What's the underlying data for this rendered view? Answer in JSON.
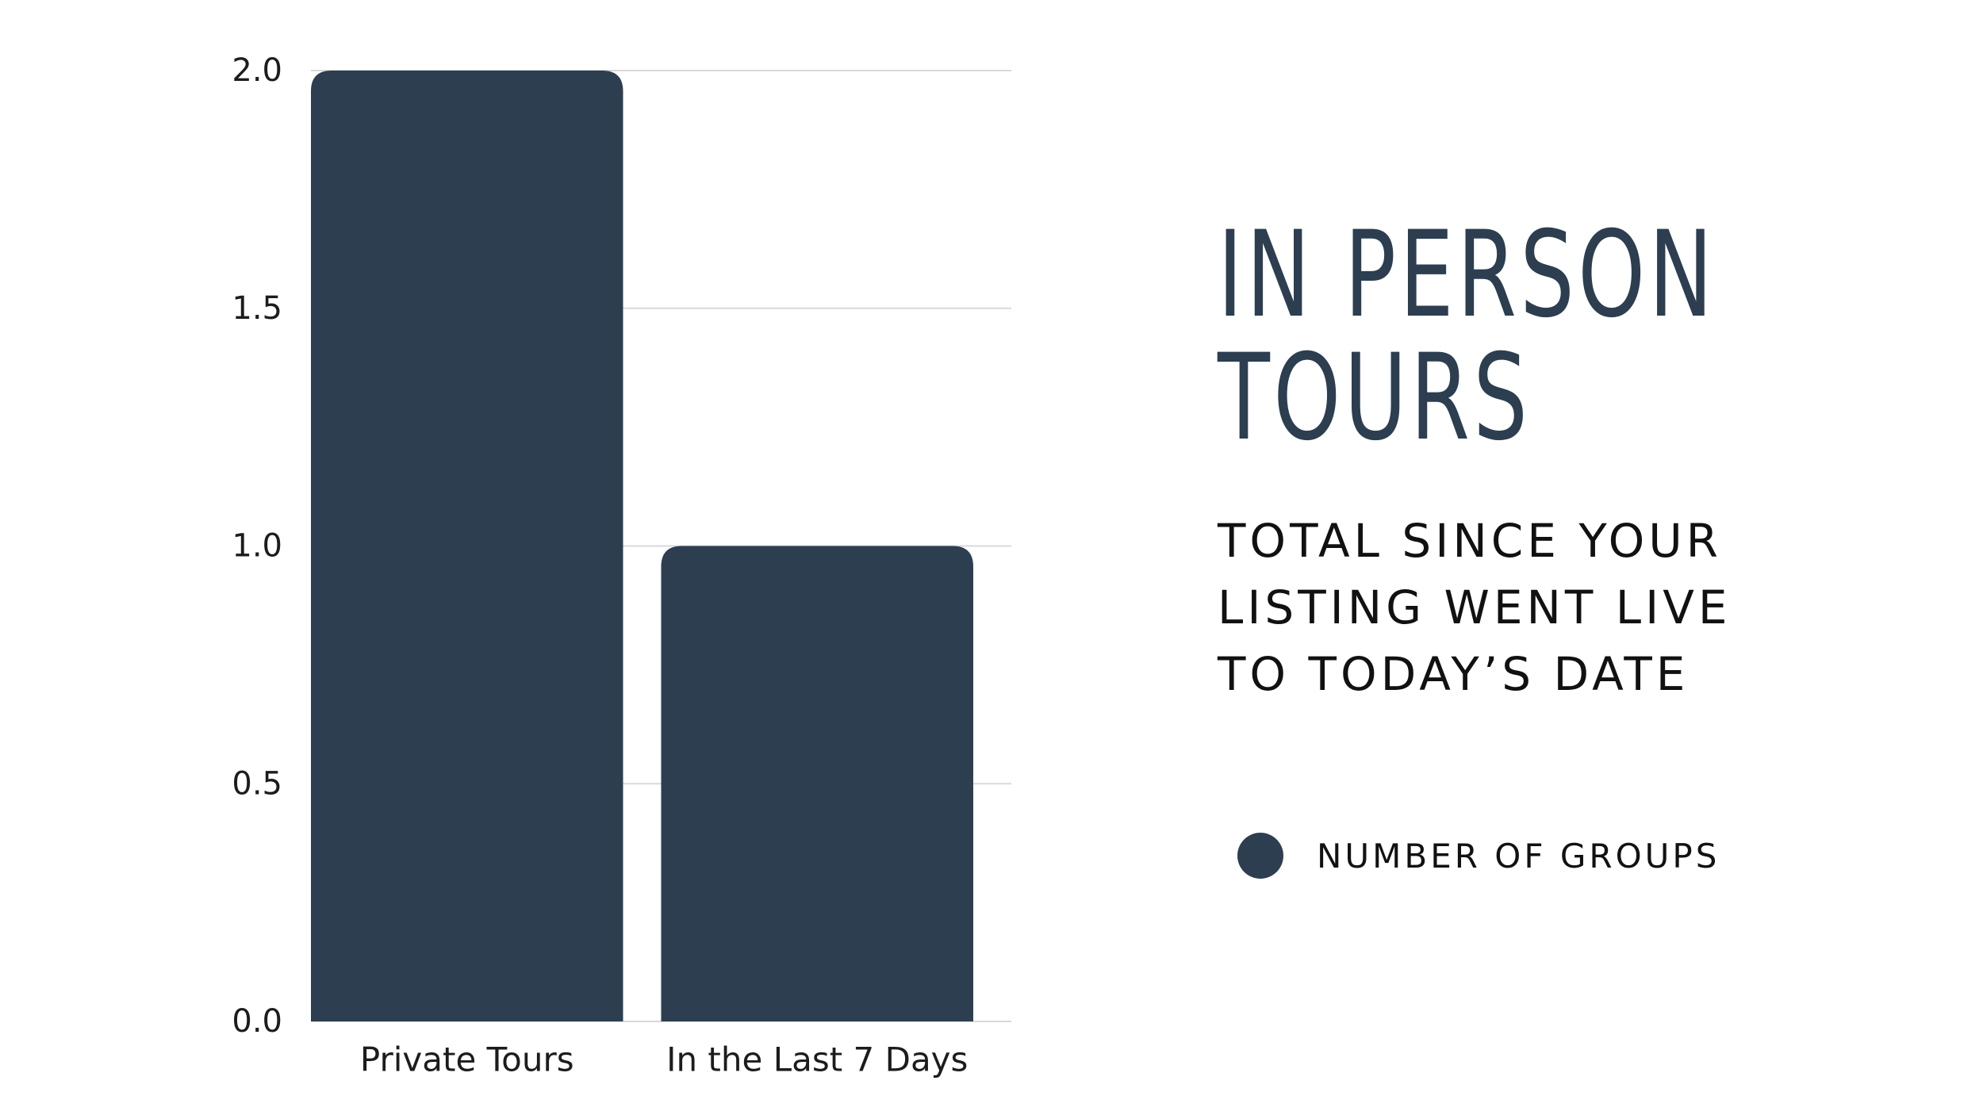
{
  "chart_data": {
    "type": "bar",
    "categories": [
      "Private Tours",
      "In the Last 7 Days"
    ],
    "series": [
      {
        "name": "NUMBER OF GROUPS",
        "values": [
          2,
          1
        ]
      }
    ],
    "yticks": [
      "0.0",
      "0.5",
      "1.0",
      "1.5",
      "2.0"
    ],
    "ylim": [
      0,
      2
    ],
    "grid": true,
    "legend_position": "right",
    "title": [
      "IN PERSON",
      "TOURS"
    ],
    "subtitle": [
      "TOTAL SINCE YOUR",
      "LISTING WENT LIVE",
      "TO TODAY’S DATE"
    ],
    "xlabel": "",
    "ylabel": ""
  },
  "colors": {
    "bar": "#2c3e50",
    "grid": "#d9d9d9",
    "axis": "#d9d9d9",
    "text": "#1c1c1c",
    "title": "#2c3e50"
  }
}
